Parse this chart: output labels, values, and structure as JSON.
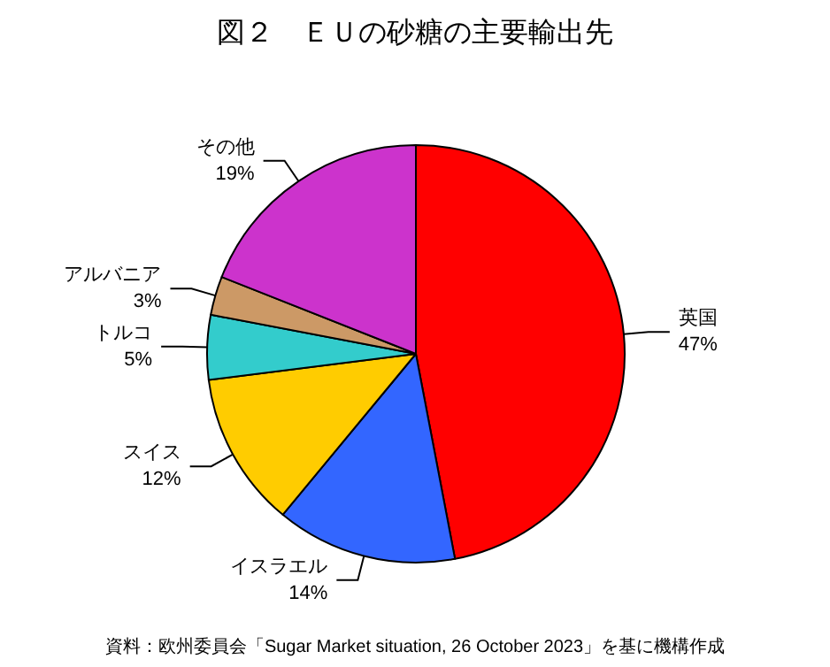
{
  "chart_data": {
    "type": "pie",
    "title": "図２　ＥＵの砂糖の主要輸出先",
    "categories": [
      "英国",
      "イスラエル",
      "スイス",
      "トルコ",
      "アルバニア",
      "その他"
    ],
    "values": [
      47,
      14,
      12,
      5,
      3,
      19
    ],
    "value_labels": [
      "47%",
      "14%",
      "12%",
      "5%",
      "3%",
      "19%"
    ],
    "colors": [
      "#ff0000",
      "#3366ff",
      "#ffcc00",
      "#33cccc",
      "#cc9966",
      "#cc33cc"
    ],
    "annotations": [
      "資料：欧州委員会「Sugar Market situation, 26 October 2023」を基に機構作成"
    ],
    "legend": false
  }
}
